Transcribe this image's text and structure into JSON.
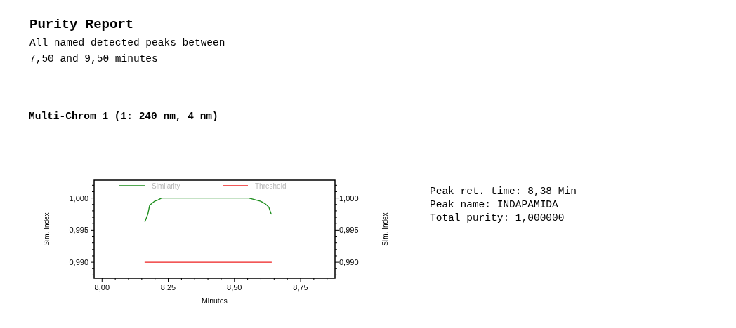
{
  "chart_data": {
    "type": "line",
    "title": "Purity Report",
    "subtitle": "All named detected peaks between\n7,50 and 9,50 minutes",
    "xlabel": "Minutes",
    "ylabel": "Sim. Index",
    "y2label": "Sim. Index",
    "annotations": [
      "Multi-Chrom 1 (1: 240 nm, 4 nm)",
      "Peak ret. time: 8,38 Min",
      "Peak name: INDAPAMIDA",
      "Total purity: 1,000000"
    ],
    "series": [
      {
        "name": "Similarity",
        "color": "#1a8c1a",
        "x": [
          8.162,
          8.173,
          8.18,
          8.198,
          8.211,
          8.225,
          8.554,
          8.572,
          8.599,
          8.617,
          8.63,
          8.639
        ],
        "values": [
          0.9963,
          0.9975,
          0.9989,
          0.9995,
          0.9997,
          1.0,
          1.0,
          0.9998,
          0.9995,
          0.9991,
          0.9986,
          0.9975
        ]
      },
      {
        "name": "Threshold",
        "color": "#ee2020",
        "x": [
          8.162,
          8.64
        ],
        "values": [
          0.99,
          0.99
        ]
      }
    ],
    "xlim": [
      7.97,
      8.88
    ],
    "ylim": [
      0.9875,
      1.0028
    ],
    "y2lim": [
      0.9875,
      1.0028
    ],
    "xticks": [
      {
        "value": 8,
        "label": "8,00"
      },
      {
        "value": 8.05,
        "label": null
      },
      {
        "value": 8.1,
        "label": null
      },
      {
        "value": 8.15,
        "label": null
      },
      {
        "value": 8.2,
        "label": null
      },
      {
        "value": 8.25,
        "label": "8,25"
      },
      {
        "value": 8.3,
        "label": null
      },
      {
        "value": 8.35,
        "label": null
      },
      {
        "value": 8.4,
        "label": null
      },
      {
        "value": 8.45,
        "label": null
      },
      {
        "value": 8.5,
        "label": "8,50"
      },
      {
        "value": 8.55,
        "label": null
      },
      {
        "value": 8.6,
        "label": null
      },
      {
        "value": 8.65,
        "label": null
      },
      {
        "value": 8.7,
        "label": null
      },
      {
        "value": 8.75,
        "label": "8,75"
      },
      {
        "value": 8.8,
        "label": null
      },
      {
        "value": 8.85,
        "label": null
      }
    ],
    "yticks": [
      {
        "value": 0.988,
        "label": null
      },
      {
        "value": 0.989,
        "label": null
      },
      {
        "value": 0.99,
        "label": "0,990"
      },
      {
        "value": 0.991,
        "label": null
      },
      {
        "value": 0.992,
        "label": null
      },
      {
        "value": 0.993,
        "label": null
      },
      {
        "value": 0.994,
        "label": null
      },
      {
        "value": 0.995,
        "label": "0,995"
      },
      {
        "value": 0.996,
        "label": null
      },
      {
        "value": 0.997,
        "label": null
      },
      {
        "value": 0.998,
        "label": null
      },
      {
        "value": 0.999,
        "label": null
      },
      {
        "value": 1.0,
        "label": "1,000"
      },
      {
        "value": 1.001,
        "label": null
      },
      {
        "value": 1.002,
        "label": null
      }
    ],
    "y2ticks": [
      {
        "value": 0.988,
        "label": null
      },
      {
        "value": 0.989,
        "label": null
      },
      {
        "value": 0.99,
        "label": "0,990"
      },
      {
        "value": 0.991,
        "label": null
      },
      {
        "value": 0.992,
        "label": null
      },
      {
        "value": 0.993,
        "label": null
      },
      {
        "value": 0.994,
        "label": null
      },
      {
        "value": 0.995,
        "label": "0,995"
      },
      {
        "value": 0.996,
        "label": null
      },
      {
        "value": 0.997,
        "label": null
      },
      {
        "value": 0.998,
        "label": null
      },
      {
        "value": 0.999,
        "label": null
      },
      {
        "value": 1.0,
        "label": "1,000"
      },
      {
        "value": 1.001,
        "label": null
      },
      {
        "value": 1.002,
        "label": null
      }
    ],
    "legend": "top",
    "grid": false,
    "marker": "none",
    "line_style": "solid"
  }
}
